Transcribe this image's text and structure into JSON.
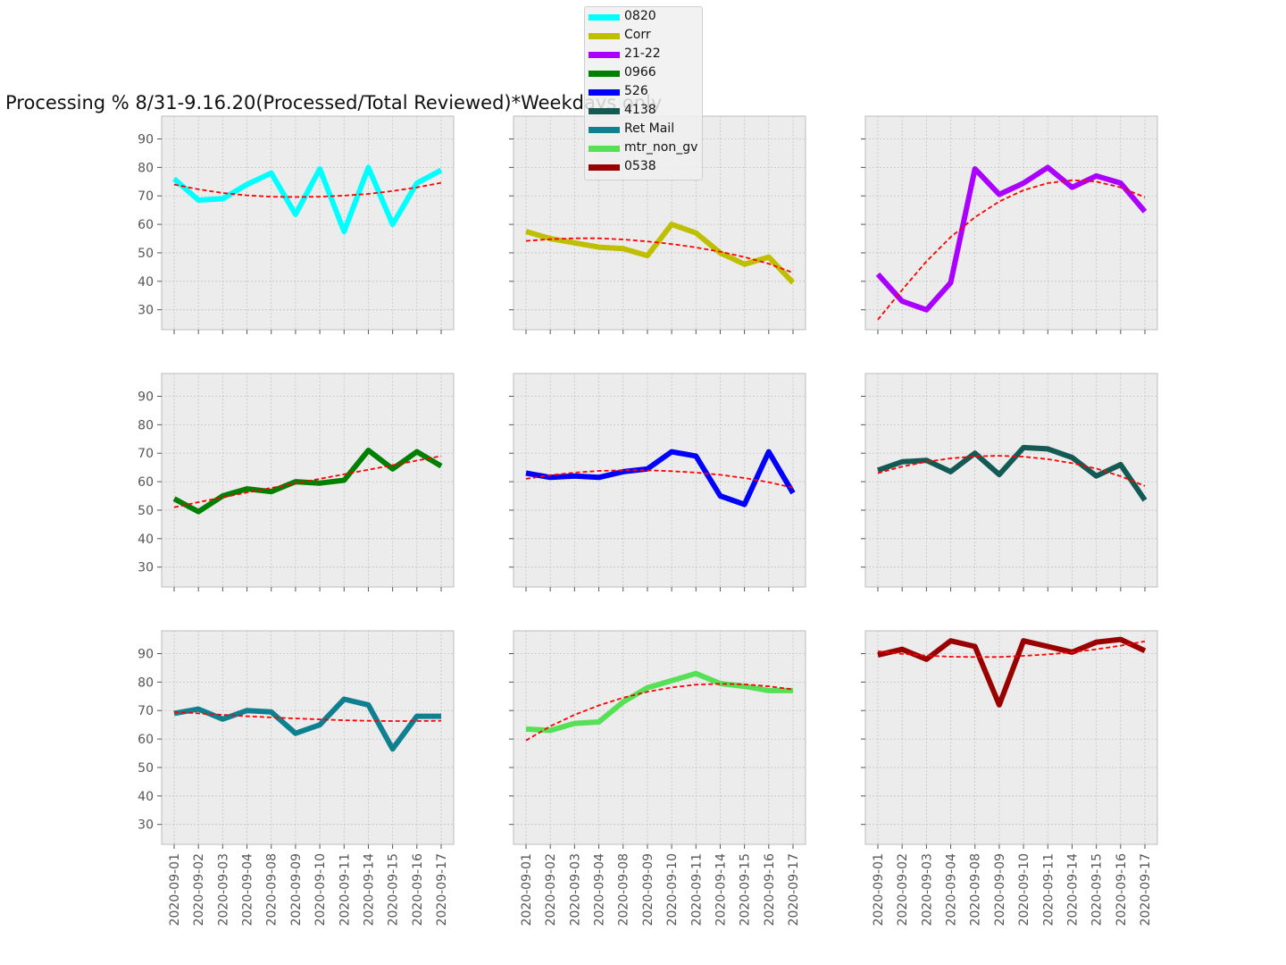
{
  "title": "Processing % 8/31-9.16.20(Processed/Total Reviewed)*Weekdays only",
  "chart_data": {
    "type": "line",
    "layout": "3x3 small multiples, shared axes",
    "categories": [
      "2020-09-01",
      "2020-09-02",
      "2020-09-03",
      "2020-09-04",
      "2020-09-08",
      "2020-09-09",
      "2020-09-10",
      "2020-09-11",
      "2020-09-14",
      "2020-09-15",
      "2020-09-16",
      "2020-09-17"
    ],
    "yticks": [
      30,
      40,
      50,
      60,
      70,
      80,
      90
    ],
    "ylim": [
      23,
      98
    ],
    "grid": true,
    "legend_position": "top-center",
    "trendline": {
      "color": "#ff0000",
      "style": "dashed"
    },
    "series": [
      {
        "name": "0820",
        "color": "#00ffff",
        "values": [
          76,
          68.5,
          69,
          74,
          78,
          63.5,
          79.5,
          57.5,
          80,
          60,
          74.5,
          79
        ],
        "trend": [
          74,
          72.3,
          71,
          70.2,
          69.7,
          69.6,
          69.7,
          70.1,
          70.7,
          71.7,
          73,
          74.6
        ]
      },
      {
        "name": "Corr",
        "color": "#bfbf00",
        "values": [
          57.5,
          55,
          53.5,
          52,
          51.5,
          49,
          60,
          57,
          50,
          46,
          48.5,
          39.5
        ],
        "trend": [
          54.2,
          54.8,
          55.1,
          55.1,
          54.7,
          54,
          53.1,
          51.9,
          50.4,
          48.5,
          46.2,
          43
        ]
      },
      {
        "name": "21-22",
        "color": "#aa00ff",
        "values": [
          42.5,
          33,
          30,
          39.5,
          79.5,
          70.5,
          74.5,
          80,
          73,
          77,
          74.5,
          64.5
        ],
        "trend": [
          26.5,
          37,
          47,
          55.5,
          62.5,
          68,
          72,
          74.5,
          75.5,
          75,
          73,
          69.5
        ]
      },
      {
        "name": "0966",
        "color": "#007f00",
        "values": [
          54,
          49.5,
          55,
          57.5,
          56.5,
          60,
          59.5,
          60.5,
          71,
          64.5,
          70.5,
          65.5
        ],
        "trend": [
          51,
          52.8,
          54.5,
          56.2,
          57.8,
          59.4,
          61,
          62.6,
          64.2,
          65.8,
          67.4,
          69
        ]
      },
      {
        "name": "526",
        "color": "#0000ff",
        "values": [
          63,
          61.5,
          62,
          61.5,
          63.5,
          64.5,
          70.5,
          69,
          55,
          52,
          70.5,
          56
        ],
        "trend": [
          61,
          62.3,
          63.2,
          63.8,
          64,
          64,
          63.7,
          63.2,
          62.4,
          61.3,
          59.8,
          57.9
        ]
      },
      {
        "name": "4138",
        "color": "#145a54",
        "values": [
          64,
          67,
          67.5,
          63.5,
          70,
          62.5,
          72,
          71.5,
          68.5,
          62,
          66,
          53.5
        ],
        "trend": [
          63,
          65.3,
          67,
          68.2,
          68.9,
          69.1,
          68.8,
          67.9,
          66.5,
          64.6,
          61.9,
          58.5
        ]
      },
      {
        "name": "Ret Mail",
        "color": "#0e8090",
        "values": [
          69,
          70.5,
          67,
          70,
          69.5,
          62,
          65,
          74,
          72,
          56.5,
          68,
          68
        ],
        "trend": [
          69.5,
          69,
          68.5,
          68,
          67.6,
          67.2,
          66.9,
          66.6,
          66.4,
          66.3,
          66.3,
          66.4
        ]
      },
      {
        "name": "mtr_non_gv",
        "color": "#55e055",
        "values": [
          63.5,
          63,
          65.5,
          66,
          73,
          78,
          80.5,
          83,
          79.5,
          78.5,
          77,
          77
        ],
        "trend": [
          59.5,
          64.5,
          68.5,
          71.8,
          74.5,
          76.6,
          78.1,
          79.1,
          79.4,
          79.2,
          78.5,
          77.4
        ]
      },
      {
        "name": "0538",
        "color": "#990000",
        "values": [
          89.5,
          91.5,
          88,
          94.5,
          92.5,
          72,
          94.5,
          92.5,
          90.5,
          94,
          95,
          91
        ],
        "trend": [
          90.8,
          89.9,
          89.3,
          88.9,
          88.8,
          88.8,
          89.2,
          89.7,
          90.5,
          91.5,
          92.8,
          94.3
        ]
      }
    ]
  }
}
